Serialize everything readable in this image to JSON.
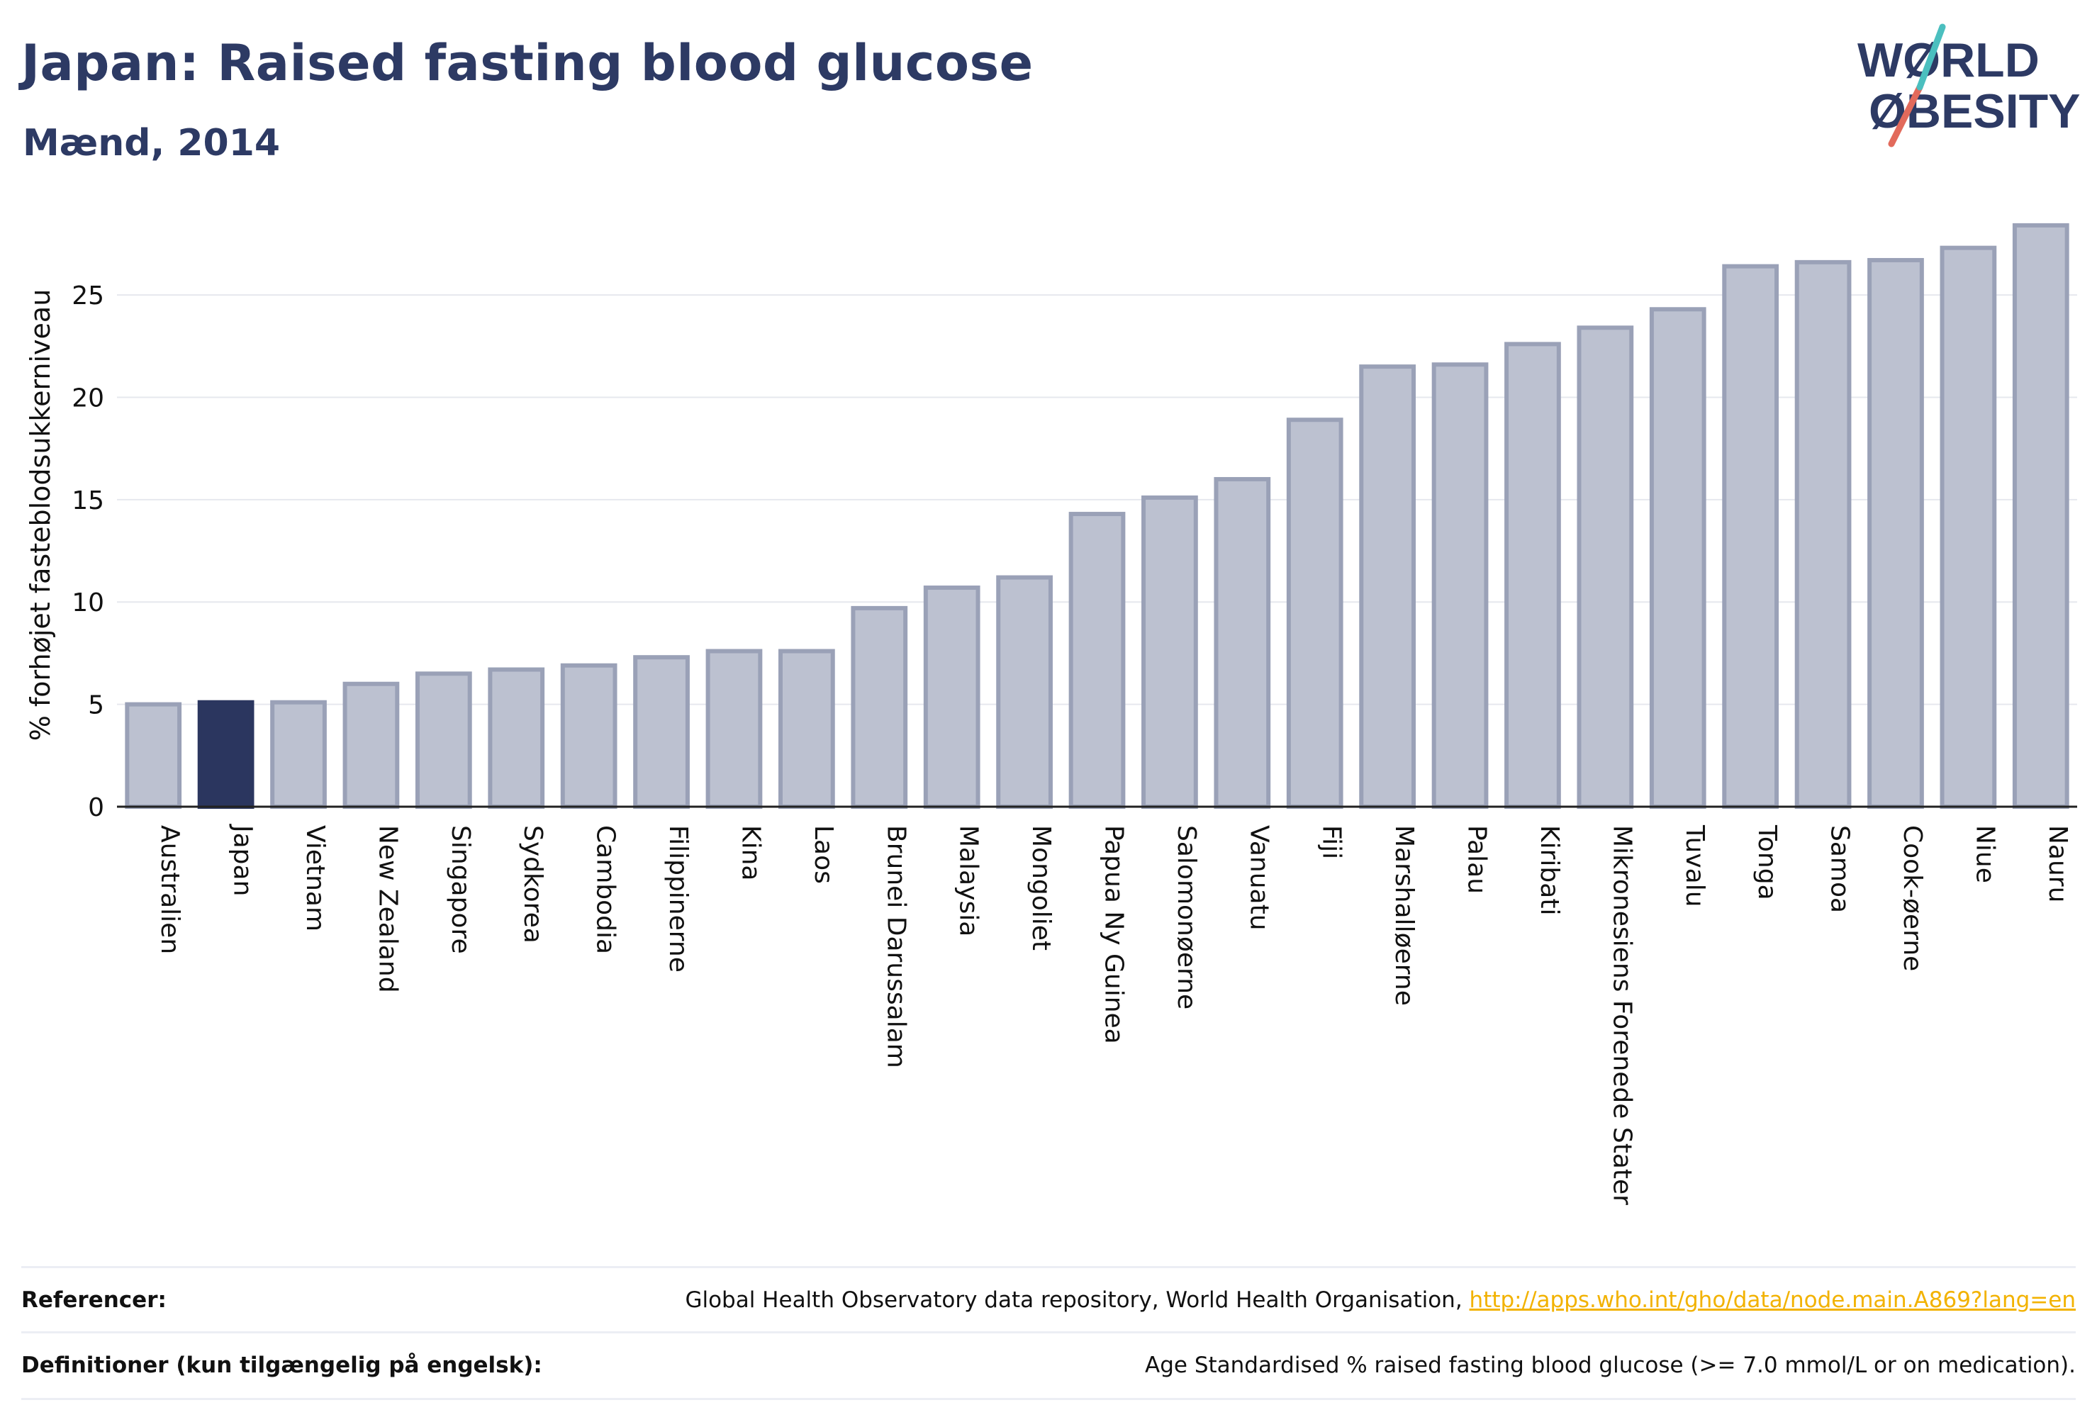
{
  "header": {
    "title": "Japan: Raised fasting blood glucose",
    "subtitle": "Mænd, 2014"
  },
  "logo": {
    "line1": "WØRLD",
    "line2": "ØBESITY"
  },
  "colors": {
    "bar": "#bcc1d0",
    "bar_border": "#9aa1b7",
    "highlight": "#2b365f",
    "link": "#f2b200",
    "text": "#2d3a64"
  },
  "chart_data": {
    "type": "bar",
    "ylabel": "% forhøjet fasteblodsukkerniveau",
    "ylim": [
      0,
      28.5
    ],
    "yticks": [
      0,
      5,
      10,
      15,
      20,
      25
    ],
    "highlight": "Japan",
    "categories": [
      "Australien",
      "Japan",
      "Vietnam",
      "New Zealand",
      "Singapore",
      "Sydkorea",
      "Cambodia",
      "Filippinerne",
      "Kina",
      "Laos",
      "Brunei Darussalam",
      "Malaysia",
      "Mongoliet",
      "Papua Ny Guinea",
      "Salomonøerne",
      "Vanuatu",
      "Fiji",
      "Marshalløerne",
      "Palau",
      "Kiribati",
      "Mikronesiens Forenede Stater",
      "Tuvalu",
      "Tonga",
      "Samoa",
      "Cook-øerne",
      "Niue",
      "Nauru"
    ],
    "values": [
      5.0,
      5.1,
      5.1,
      6.0,
      6.5,
      6.7,
      6.9,
      7.3,
      7.6,
      7.6,
      9.7,
      10.7,
      11.2,
      14.3,
      15.1,
      16.0,
      18.9,
      21.5,
      21.6,
      22.6,
      23.4,
      24.3,
      26.4,
      26.6,
      26.7,
      27.3,
      28.4
    ]
  },
  "footer": {
    "references_label": "Referencer:",
    "references_text": "Global Health Observatory data repository, World Health Organisation, ",
    "references_link": "http://apps.who.int/gho/data/node.main.A869?lang=en",
    "definitions_label": "Definitioner (kun tilgængelig på engelsk):",
    "definitions_text": "Age Standardised % raised fasting blood glucose (>= 7.0 mmol/L or on medication)."
  }
}
